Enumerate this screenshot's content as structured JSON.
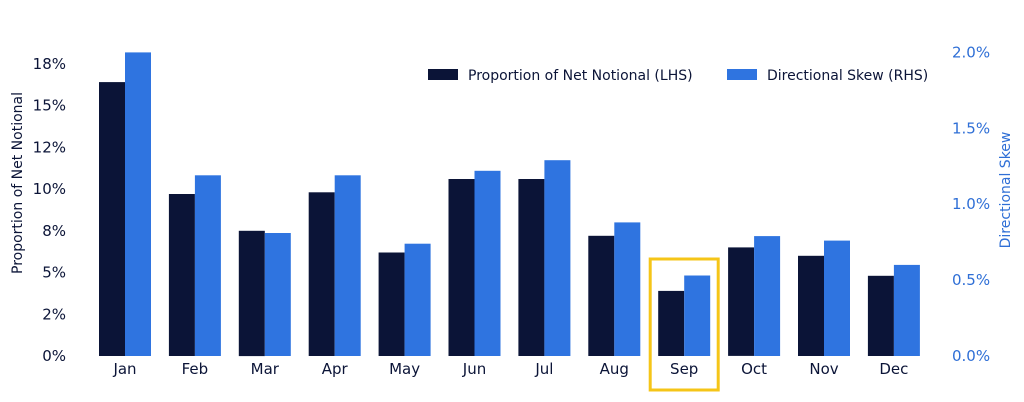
{
  "chart_data": {
    "type": "bar",
    "categories": [
      "Jan",
      "Feb",
      "Mar",
      "Apr",
      "May",
      "Jun",
      "Jul",
      "Aug",
      "Sep",
      "Oct",
      "Nov",
      "Dec"
    ],
    "series": [
      {
        "name": "Proportion of Net Notional (LHS)",
        "axis": "left",
        "color": "#0b1437",
        "values": [
          16.4,
          9.7,
          7.5,
          9.8,
          6.2,
          10.6,
          10.6,
          7.2,
          3.9,
          6.5,
          6.0,
          4.8
        ]
      },
      {
        "name": "Directional Skew (RHS)",
        "axis": "right",
        "color": "#2f74e0",
        "values": [
          2.0,
          1.19,
          0.81,
          1.19,
          0.74,
          1.22,
          1.29,
          0.88,
          0.53,
          0.79,
          0.76,
          0.6
        ]
      }
    ],
    "y_left": {
      "label": "Proportion of Net Notional",
      "range": [
        0,
        20
      ],
      "ticks": [
        0,
        2.5,
        5,
        7.5,
        10,
        12.5,
        15,
        17.5
      ],
      "tick_labels": [
        "0%",
        "2%",
        "5%",
        "8%",
        "10%",
        "12%",
        "15%",
        "18%"
      ]
    },
    "y_right": {
      "label": "Directional Skew",
      "range": [
        0,
        2.2
      ],
      "ticks": [
        0,
        0.5,
        1.0,
        1.5,
        2.0
      ],
      "tick_labels": [
        "0.0%",
        "0.5%",
        "1.0%",
        "1.5%",
        "2.0%"
      ]
    },
    "highlight": {
      "category": "Sep",
      "color": "#f5c518"
    },
    "legend_position": "top-right",
    "grid": false
  }
}
